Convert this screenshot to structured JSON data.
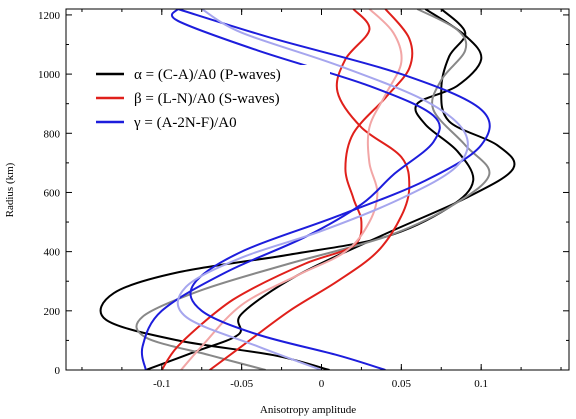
{
  "chart_data": {
    "type": "line",
    "xlabel": "Anisotropy amplitude",
    "ylabel": "Radius (km)",
    "xlim": [
      -0.16,
      0.155
    ],
    "ylim": [
      0,
      1220
    ],
    "xticks": [
      {
        "v": -0.1,
        "label": "-0.1"
      },
      {
        "v": -0.05,
        "label": "-0.05"
      },
      {
        "v": 0,
        "label": "0"
      },
      {
        "v": 0.05,
        "label": "0.05"
      },
      {
        "v": 0.1,
        "label": "0.1"
      }
    ],
    "yticks": [
      {
        "v": 0,
        "label": "0"
      },
      {
        "v": 200,
        "label": "200"
      },
      {
        "v": 400,
        "label": "400"
      },
      {
        "v": 600,
        "label": "600"
      },
      {
        "v": 800,
        "label": "800"
      },
      {
        "v": 1000,
        "label": "1000"
      },
      {
        "v": 1200,
        "label": "1200"
      }
    ],
    "grid": false,
    "legend_position": "upper-left",
    "legend": [
      {
        "label": "α = (C-A)/A0 (P-waves)",
        "color": "#000000"
      },
      {
        "label": "β = (L-N)/A0 (S-waves)",
        "color": "#e0201b"
      },
      {
        "label": "γ = (A-2N-F)/A0",
        "color": "#1d1ddc"
      }
    ],
    "series": [
      {
        "color": "#000000",
        "style": "solid",
        "points": [
          [
            0.005,
            0
          ],
          [
            -0.03,
            50
          ],
          [
            -0.09,
            100
          ],
          [
            -0.135,
            170
          ],
          [
            -0.13,
            260
          ],
          [
            -0.09,
            330
          ],
          [
            -0.02,
            390
          ],
          [
            0.04,
            450
          ],
          [
            0.08,
            550
          ],
          [
            0.095,
            640
          ],
          [
            0.085,
            740
          ],
          [
            0.065,
            830
          ],
          [
            0.06,
            900
          ],
          [
            0.085,
            960
          ],
          [
            0.1,
            1050
          ],
          [
            0.09,
            1130
          ],
          [
            0.065,
            1220
          ]
        ]
      },
      {
        "color": "#000000",
        "style": "solid",
        "points": [
          [
            -0.11,
            0
          ],
          [
            -0.08,
            60
          ],
          [
            -0.052,
            120
          ],
          [
            -0.05,
            190
          ],
          [
            -0.015,
            320
          ],
          [
            0.04,
            460
          ],
          [
            0.09,
            580
          ],
          [
            0.12,
            680
          ],
          [
            0.11,
            760
          ],
          [
            0.08,
            840
          ],
          [
            0.075,
            950
          ],
          [
            0.08,
            1060
          ],
          [
            0.09,
            1140
          ],
          [
            0.075,
            1220
          ]
        ]
      },
      {
        "color": "#888888",
        "style": "solid",
        "points": [
          [
            -0.035,
            0
          ],
          [
            -0.07,
            50
          ],
          [
            -0.11,
            110
          ],
          [
            -0.112,
            180
          ],
          [
            -0.075,
            270
          ],
          [
            -0.02,
            360
          ],
          [
            0.04,
            450
          ],
          [
            0.08,
            550
          ],
          [
            0.105,
            660
          ],
          [
            0.09,
            760
          ],
          [
            0.07,
            880
          ],
          [
            0.075,
            980
          ],
          [
            0.09,
            1080
          ],
          [
            0.085,
            1150
          ],
          [
            0.06,
            1220
          ]
        ]
      },
      {
        "color": "#e0201b",
        "style": "solid",
        "points": [
          [
            -0.1,
            0
          ],
          [
            -0.09,
            80
          ],
          [
            -0.065,
            200
          ],
          [
            -0.045,
            270
          ],
          [
            -0.01,
            360
          ],
          [
            0.02,
            420
          ],
          [
            0.025,
            500
          ],
          [
            0.02,
            580
          ],
          [
            0.015,
            680
          ],
          [
            0.02,
            800
          ],
          [
            0.04,
            920
          ],
          [
            0.055,
            1020
          ],
          [
            0.055,
            1120
          ],
          [
            0.04,
            1220
          ]
        ]
      },
      {
        "color": "#e0201b",
        "style": "solid",
        "points": [
          [
            -0.07,
            0
          ],
          [
            -0.05,
            80
          ],
          [
            -0.02,
            200
          ],
          [
            0.01,
            300
          ],
          [
            0.035,
            400
          ],
          [
            0.05,
            520
          ],
          [
            0.055,
            620
          ],
          [
            0.05,
            720
          ],
          [
            0.025,
            820
          ],
          [
            0.01,
            940
          ],
          [
            0.015,
            1050
          ],
          [
            0.03,
            1150
          ],
          [
            0.02,
            1220
          ]
        ]
      },
      {
        "color": "#f2a6a6",
        "style": "solid",
        "points": [
          [
            -0.088,
            0
          ],
          [
            -0.075,
            80
          ],
          [
            -0.05,
            220
          ],
          [
            -0.015,
            320
          ],
          [
            0.015,
            400
          ],
          [
            0.03,
            500
          ],
          [
            0.035,
            600
          ],
          [
            0.03,
            700
          ],
          [
            0.03,
            820
          ],
          [
            0.04,
            930
          ],
          [
            0.05,
            1040
          ],
          [
            0.045,
            1140
          ],
          [
            0.03,
            1220
          ]
        ]
      },
      {
        "color": "#1d1ddc",
        "style": "solid",
        "points": [
          [
            0.04,
            0
          ],
          [
            0.01,
            50
          ],
          [
            -0.04,
            120
          ],
          [
            -0.075,
            200
          ],
          [
            -0.08,
            290
          ],
          [
            -0.05,
            400
          ],
          [
            0.01,
            520
          ],
          [
            0.065,
            640
          ],
          [
            0.1,
            760
          ],
          [
            0.1,
            880
          ],
          [
            0.05,
            1000
          ],
          [
            -0.03,
            1120
          ],
          [
            -0.09,
            1220
          ]
        ]
      },
      {
        "color": "#1d1ddc",
        "style": "solid",
        "points": [
          [
            -0.11,
            0
          ],
          [
            -0.112,
            80
          ],
          [
            -0.1,
            200
          ],
          [
            -0.06,
            330
          ],
          [
            -0.01,
            450
          ],
          [
            0.025,
            560
          ],
          [
            0.045,
            660
          ],
          [
            0.07,
            770
          ],
          [
            0.07,
            860
          ],
          [
            0.03,
            960
          ],
          [
            -0.04,
            1080
          ],
          [
            -0.09,
            1180
          ],
          [
            -0.09,
            1220
          ]
        ]
      },
      {
        "color": "#a6a6ee",
        "style": "solid",
        "points": [
          [
            0.0,
            0
          ],
          [
            -0.04,
            80
          ],
          [
            -0.085,
            180
          ],
          [
            -0.085,
            280
          ],
          [
            -0.05,
            380
          ],
          [
            0.0,
            470
          ],
          [
            0.05,
            580
          ],
          [
            0.085,
            690
          ],
          [
            0.09,
            800
          ],
          [
            0.065,
            910
          ],
          [
            0.01,
            1030
          ],
          [
            -0.05,
            1140
          ],
          [
            -0.075,
            1220
          ]
        ]
      }
    ]
  }
}
